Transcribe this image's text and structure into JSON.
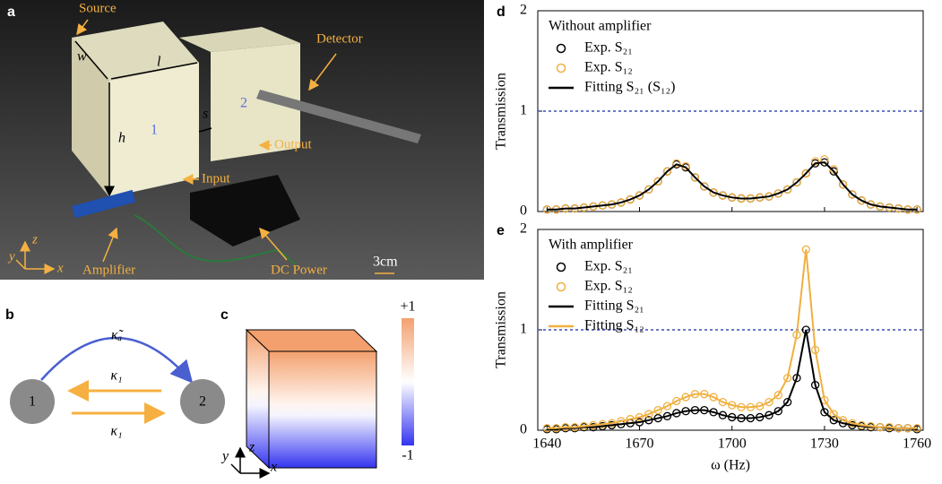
{
  "panel_a": {
    "label": "a",
    "source": "Source",
    "detector": "Detector",
    "output": "Output",
    "input": "Input",
    "amplifier": "Amplifier",
    "dc_power": "DC Power",
    "scale": "3cm",
    "dims": {
      "w": "w",
      "l": "l",
      "h": "h",
      "s": "s"
    },
    "boxes": [
      "1",
      "2"
    ],
    "axes": [
      "x",
      "y",
      "z"
    ]
  },
  "panel_b": {
    "label": "b",
    "nodes": [
      "1",
      "2"
    ],
    "couplings": [
      "κ̃ₐ",
      "κ₁",
      "κ₁"
    ]
  },
  "panel_c": {
    "label": "c",
    "colorbar_range": [
      -1,
      1
    ],
    "colorbar_ticks": [
      {
        "value": 1,
        "label": "+1"
      },
      -1
    ],
    "axes": [
      "x",
      "y",
      "z"
    ]
  },
  "chart_data": [
    {
      "type": "line",
      "label": "d",
      "legend_title": "Without amplifier",
      "ylabel": "Transmission",
      "x": [
        1640,
        1643,
        1646,
        1649,
        1652,
        1655,
        1658,
        1661,
        1664,
        1667,
        1670,
        1673,
        1676,
        1679,
        1682,
        1685,
        1688,
        1691,
        1694,
        1697,
        1700,
        1703,
        1706,
        1709,
        1712,
        1715,
        1718,
        1721,
        1724,
        1727,
        1730,
        1733,
        1736,
        1739,
        1742,
        1745,
        1748,
        1751,
        1754,
        1757,
        1760
      ],
      "xlim": [
        1637,
        1762
      ],
      "xticks": [
        1640,
        1670,
        1700,
        1730,
        1760
      ],
      "ylim": [
        0,
        2
      ],
      "yticks": [
        0,
        1,
        2
      ],
      "reference_line": {
        "value": 1,
        "color": "#3b4fb0"
      },
      "series": [
        {
          "name": "Exp. S₂₁",
          "style": "marker",
          "color": "#000000",
          "values": [
            0.02,
            0.02,
            0.03,
            0.03,
            0.04,
            0.05,
            0.06,
            0.07,
            0.09,
            0.12,
            0.16,
            0.22,
            0.3,
            0.4,
            0.47,
            0.44,
            0.34,
            0.25,
            0.19,
            0.16,
            0.14,
            0.13,
            0.13,
            0.14,
            0.15,
            0.18,
            0.22,
            0.29,
            0.38,
            0.48,
            0.49,
            0.4,
            0.27,
            0.17,
            0.11,
            0.07,
            0.05,
            0.04,
            0.03,
            0.02,
            0.02
          ]
        },
        {
          "name": "Exp. S₁₂",
          "style": "marker",
          "color": "#f0b040",
          "values": [
            0.02,
            0.02,
            0.03,
            0.03,
            0.04,
            0.05,
            0.06,
            0.07,
            0.09,
            0.12,
            0.16,
            0.22,
            0.3,
            0.4,
            0.48,
            0.45,
            0.34,
            0.25,
            0.19,
            0.16,
            0.14,
            0.13,
            0.13,
            0.14,
            0.15,
            0.18,
            0.22,
            0.29,
            0.38,
            0.5,
            0.52,
            0.42,
            0.27,
            0.17,
            0.11,
            0.07,
            0.05,
            0.04,
            0.03,
            0.02,
            0.02
          ]
        },
        {
          "name": "Fitting S₂₁ (S₁₂)",
          "style": "line",
          "color": "#000000",
          "values": [
            0.02,
            0.02,
            0.03,
            0.03,
            0.04,
            0.05,
            0.06,
            0.07,
            0.09,
            0.12,
            0.16,
            0.22,
            0.3,
            0.4,
            0.47,
            0.44,
            0.34,
            0.25,
            0.19,
            0.16,
            0.14,
            0.13,
            0.13,
            0.14,
            0.15,
            0.18,
            0.22,
            0.29,
            0.38,
            0.48,
            0.49,
            0.4,
            0.27,
            0.17,
            0.11,
            0.07,
            0.05,
            0.04,
            0.03,
            0.02,
            0.02
          ]
        }
      ]
    },
    {
      "type": "line",
      "label": "e",
      "legend_title": "With amplifier",
      "ylabel": "Transmission",
      "xlabel": "ω (Hz)",
      "x": [
        1640,
        1643,
        1646,
        1649,
        1652,
        1655,
        1658,
        1661,
        1664,
        1667,
        1670,
        1673,
        1676,
        1679,
        1682,
        1685,
        1688,
        1691,
        1694,
        1697,
        1700,
        1703,
        1706,
        1709,
        1712,
        1715,
        1718,
        1721,
        1724,
        1727,
        1730,
        1733,
        1736,
        1739,
        1742,
        1745,
        1748,
        1751,
        1754,
        1757,
        1760
      ],
      "xlim": [
        1637,
        1762
      ],
      "xticks": [
        1640,
        1670,
        1700,
        1730,
        1760
      ],
      "ylim": [
        0,
        2
      ],
      "yticks": [
        0,
        1,
        2
      ],
      "reference_line": {
        "value": 1,
        "color": "#3b4fb0"
      },
      "series": [
        {
          "name": "Exp. S₂₁",
          "style": "marker",
          "color": "#000000",
          "values": [
            0.01,
            0.01,
            0.02,
            0.02,
            0.03,
            0.03,
            0.04,
            0.05,
            0.06,
            0.07,
            0.08,
            0.1,
            0.12,
            0.14,
            0.17,
            0.19,
            0.2,
            0.2,
            0.18,
            0.15,
            0.13,
            0.12,
            0.12,
            0.13,
            0.15,
            0.19,
            0.28,
            0.52,
            1.0,
            0.45,
            0.18,
            0.1,
            0.07,
            0.05,
            0.04,
            0.03,
            0.03,
            0.02,
            0.02,
            0.02,
            0.01
          ]
        },
        {
          "name": "Exp. S₁₂",
          "style": "marker",
          "color": "#f0b040",
          "values": [
            0.02,
            0.02,
            0.03,
            0.03,
            0.04,
            0.05,
            0.06,
            0.07,
            0.09,
            0.11,
            0.13,
            0.16,
            0.2,
            0.24,
            0.29,
            0.33,
            0.36,
            0.36,
            0.33,
            0.28,
            0.25,
            0.23,
            0.23,
            0.24,
            0.28,
            0.35,
            0.52,
            0.95,
            1.8,
            0.8,
            0.3,
            0.16,
            0.1,
            0.07,
            0.05,
            0.04,
            0.03,
            0.03,
            0.02,
            0.02,
            0.02
          ]
        },
        {
          "name": "Fitting S₂₁",
          "style": "line",
          "color": "#000000",
          "values": [
            0.01,
            0.01,
            0.02,
            0.02,
            0.03,
            0.03,
            0.04,
            0.05,
            0.06,
            0.07,
            0.08,
            0.1,
            0.12,
            0.14,
            0.17,
            0.19,
            0.2,
            0.2,
            0.18,
            0.15,
            0.13,
            0.12,
            0.12,
            0.13,
            0.15,
            0.19,
            0.28,
            0.52,
            1.0,
            0.45,
            0.18,
            0.1,
            0.07,
            0.05,
            0.04,
            0.03,
            0.03,
            0.02,
            0.02,
            0.02,
            0.01
          ]
        },
        {
          "name": "Fitting S₁₂",
          "style": "line",
          "color": "#f0b040",
          "values": [
            0.02,
            0.02,
            0.03,
            0.03,
            0.04,
            0.05,
            0.06,
            0.07,
            0.09,
            0.11,
            0.13,
            0.16,
            0.2,
            0.24,
            0.29,
            0.33,
            0.36,
            0.36,
            0.33,
            0.28,
            0.25,
            0.23,
            0.23,
            0.24,
            0.28,
            0.35,
            0.52,
            0.95,
            1.8,
            0.8,
            0.3,
            0.16,
            0.1,
            0.07,
            0.05,
            0.04,
            0.03,
            0.03,
            0.02,
            0.02,
            0.02
          ]
        }
      ]
    }
  ]
}
